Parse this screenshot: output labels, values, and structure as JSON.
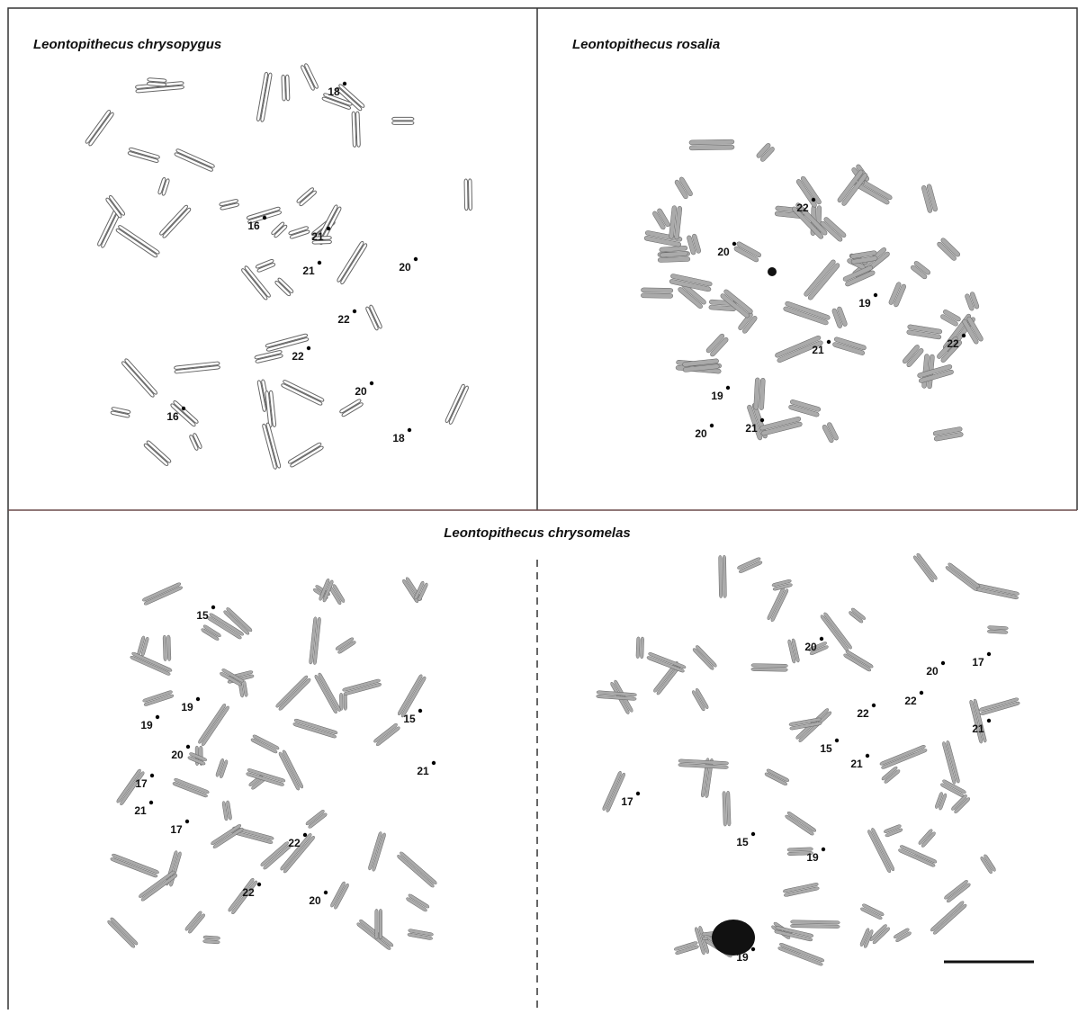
{
  "panels": [
    {
      "title": "Leontopithecus chrysopygus",
      "labels": [
        "18",
        "16",
        "21",
        "21",
        "20",
        "22",
        "22",
        "20",
        "16",
        "18"
      ]
    },
    {
      "title": "Leontopithecus rosalia",
      "labels": [
        "22",
        "20",
        "19",
        "21",
        "22",
        "19",
        "20",
        "21"
      ]
    }
  ],
  "bottom": {
    "title": "Leontopithecus chrysomelas",
    "left_labels": [
      "15",
      "19",
      "19",
      "15",
      "20",
      "21",
      "17",
      "21",
      "17",
      "22",
      "22",
      "20"
    ],
    "right_labels": [
      "20",
      "20",
      "17",
      "22",
      "22",
      "21",
      "15",
      "21",
      "17",
      "15",
      "19",
      "19"
    ]
  }
}
